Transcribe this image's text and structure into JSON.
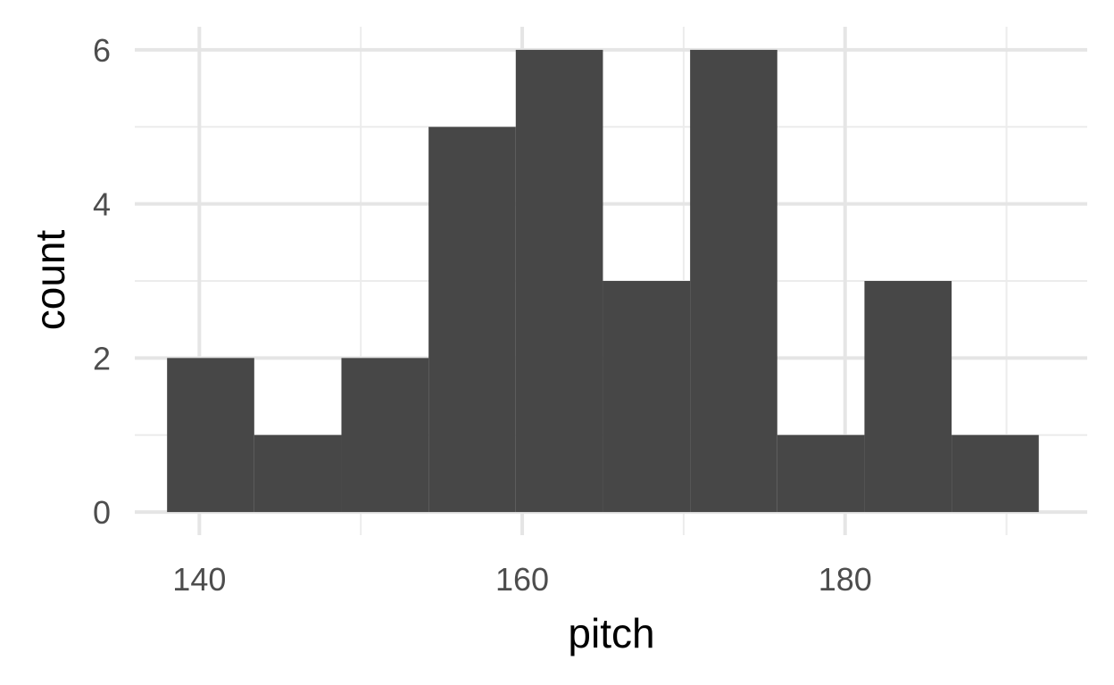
{
  "chart_data": {
    "type": "bar",
    "title": "",
    "xlabel": "pitch",
    "ylabel": "count",
    "xlim": [
      136,
      195
    ],
    "ylim": [
      -0.3,
      6.3
    ],
    "x_ticks": [
      140,
      160,
      180
    ],
    "x_minor_ticks": [
      150,
      170,
      190
    ],
    "y_ticks": [
      0,
      2,
      4,
      6
    ],
    "y_minor_ticks": [
      1,
      3,
      5
    ],
    "grid": true,
    "bins": [
      {
        "x0": 138.0,
        "x1": 143.4,
        "count": 2
      },
      {
        "x0": 143.4,
        "x1": 148.8,
        "count": 1
      },
      {
        "x0": 148.8,
        "x1": 154.2,
        "count": 2
      },
      {
        "x0": 154.2,
        "x1": 159.6,
        "count": 5
      },
      {
        "x0": 159.6,
        "x1": 165.0,
        "count": 6
      },
      {
        "x0": 165.0,
        "x1": 170.4,
        "count": 3
      },
      {
        "x0": 170.4,
        "x1": 175.8,
        "count": 6
      },
      {
        "x0": 175.8,
        "x1": 181.2,
        "count": 1
      },
      {
        "x0": 181.2,
        "x1": 186.6,
        "count": 3
      },
      {
        "x0": 186.6,
        "x1": 192.0,
        "count": 1
      }
    ],
    "bar_color": "#474747",
    "grid_color": "#e5e5e5"
  }
}
